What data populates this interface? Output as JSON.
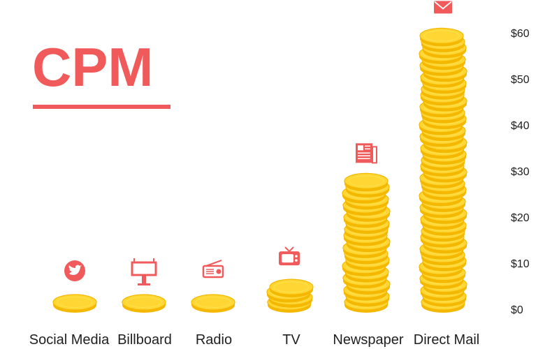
{
  "chart_data": {
    "type": "bar",
    "title": "CPM",
    "categories": [
      "Social Media",
      "Billboard",
      "Radio",
      "TV",
      "Newspaper",
      "Direct Mail"
    ],
    "values": [
      0.5,
      1.0,
      2.5,
      6.5,
      29.5,
      61
    ],
    "category_icons": [
      "twitter-icon",
      "billboard-icon",
      "radio-icon",
      "tv-icon",
      "newspaper-icon",
      "mail-icon"
    ],
    "y_ticks": [
      "$0",
      "$10",
      "$20",
      "$30",
      "$40",
      "$50",
      "$60"
    ],
    "ylim": [
      0,
      60
    ],
    "grid": false,
    "colors": {
      "accent": "#f05a5b",
      "coin_fill": "#ffd633",
      "coin_edge": "#f5b800",
      "coin_top": "#ffe04a",
      "text": "#1f1f1f"
    }
  }
}
